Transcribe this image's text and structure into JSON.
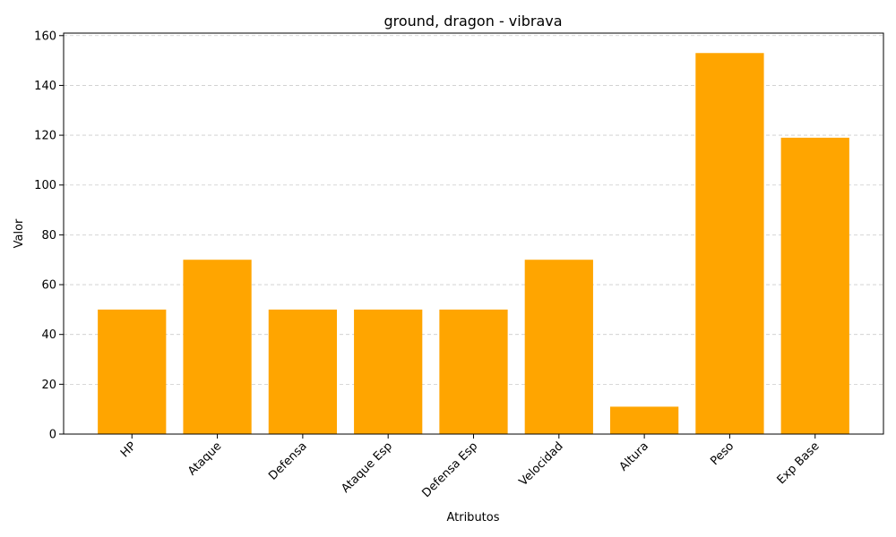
{
  "chart_data": {
    "type": "bar",
    "title": "ground, dragon - vibrava",
    "xlabel": "Atributos",
    "ylabel": "Valor",
    "categories": [
      "HP",
      "Ataque",
      "Defensa",
      "Ataque Esp",
      "Defensa Esp",
      "Velocidad",
      "Altura",
      "Peso",
      "Exp Base"
    ],
    "values": [
      50,
      70,
      50,
      50,
      50,
      70,
      11,
      153,
      119
    ],
    "ylim": [
      0,
      161
    ],
    "yticks": [
      0,
      20,
      40,
      60,
      80,
      100,
      120,
      140,
      160
    ],
    "grid": "y-dashed",
    "bar_color": "#FFA500",
    "grid_color": "#cccccc"
  }
}
